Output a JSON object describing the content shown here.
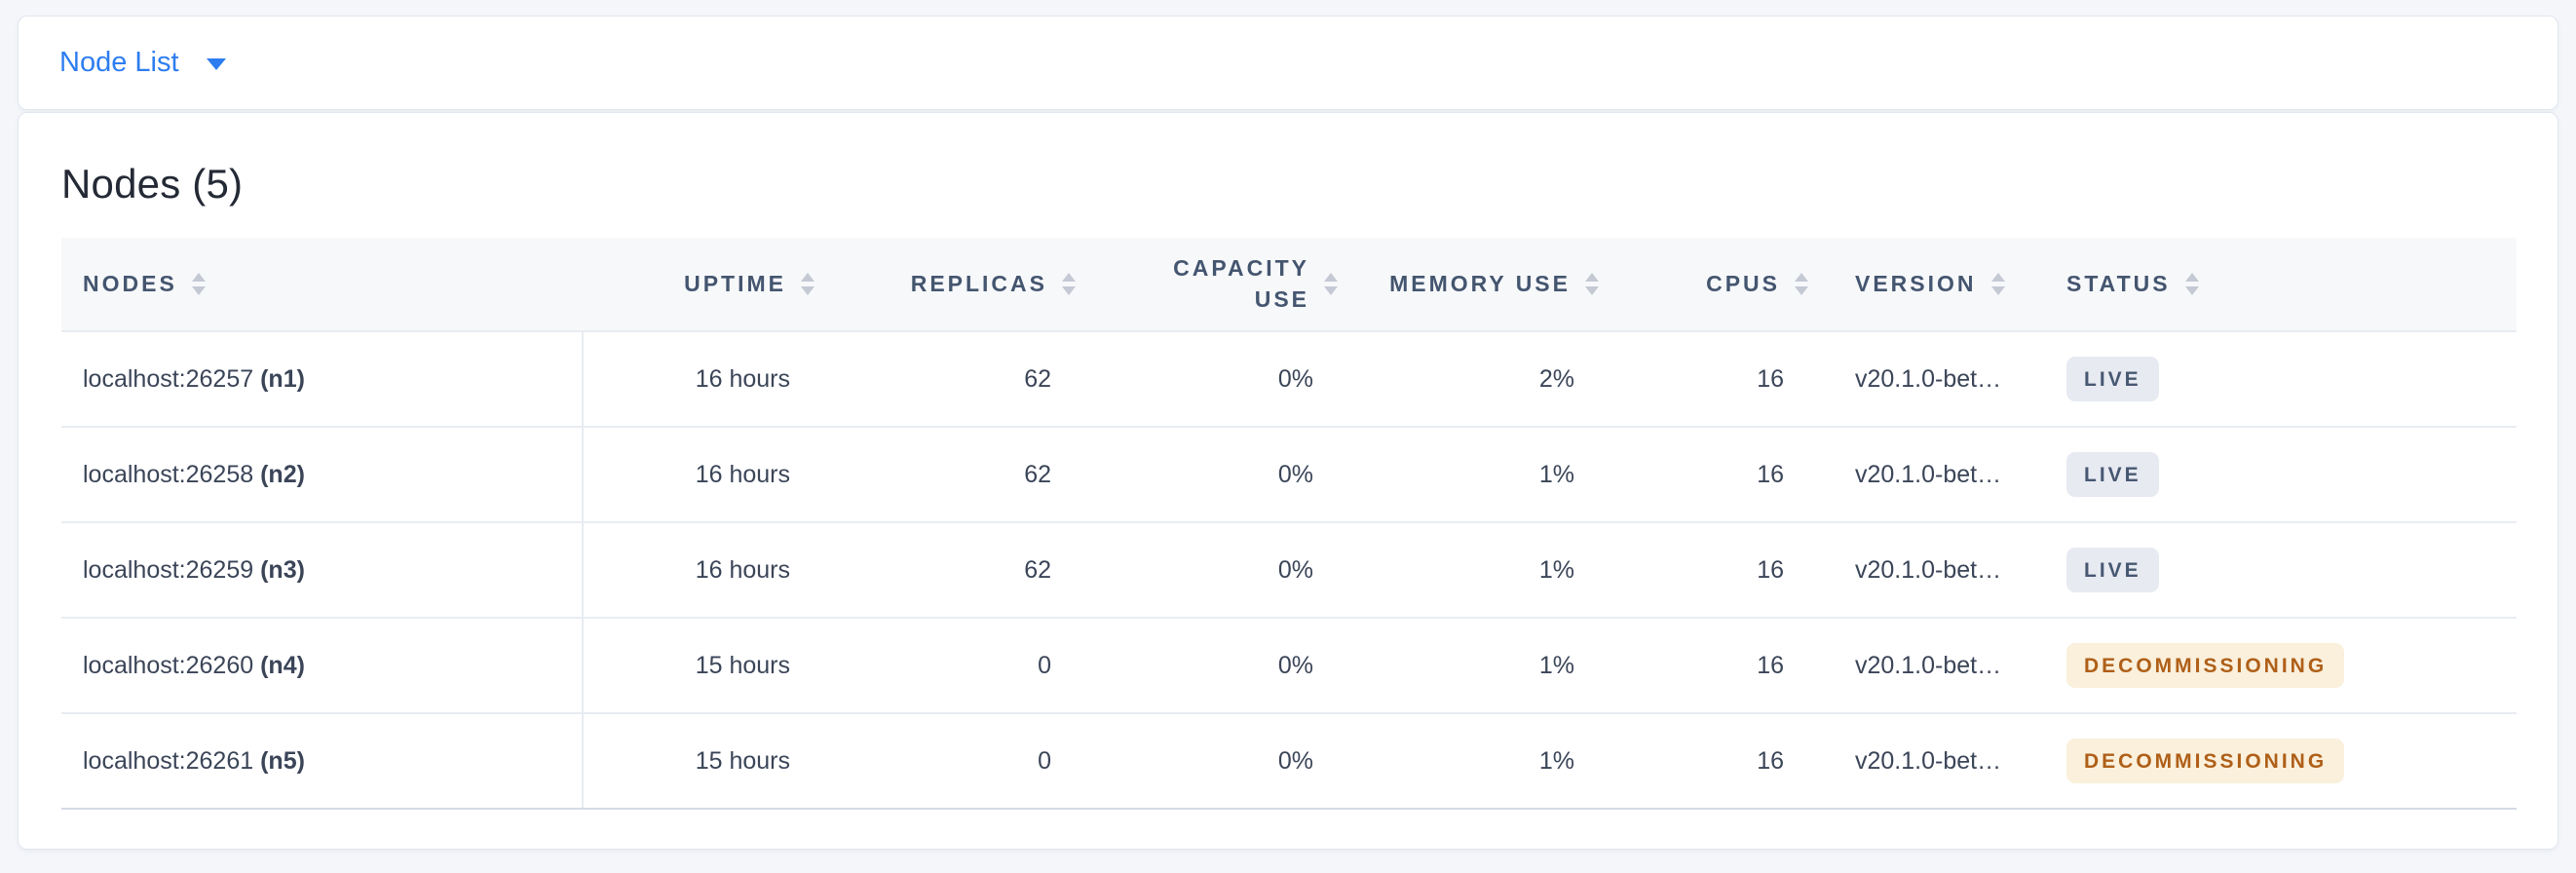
{
  "topbar": {
    "dropdown_label": "Node List"
  },
  "main": {
    "heading": "Nodes (5)",
    "table": {
      "columns": [
        {
          "label": "NODES",
          "align": "left"
        },
        {
          "label": "UPTIME",
          "align": "right"
        },
        {
          "label": "REPLICAS",
          "align": "right"
        },
        {
          "label": "CAPACITY USE",
          "align": "right"
        },
        {
          "label": "MEMORY USE",
          "align": "right"
        },
        {
          "label": "CPUS",
          "align": "right"
        },
        {
          "label": "VERSION",
          "align": "left"
        },
        {
          "label": "STATUS",
          "align": "left"
        }
      ],
      "rows": [
        {
          "node": "localhost:26257",
          "id": "(n1)",
          "uptime": "16 hours",
          "replicas": "62",
          "capacity_use": "0%",
          "memory_use": "2%",
          "cpus": "16",
          "version": "v20.1.0-bet…",
          "status": "LIVE",
          "status_kind": "live"
        },
        {
          "node": "localhost:26258",
          "id": "(n2)",
          "uptime": "16 hours",
          "replicas": "62",
          "capacity_use": "0%",
          "memory_use": "1%",
          "cpus": "16",
          "version": "v20.1.0-bet…",
          "status": "LIVE",
          "status_kind": "live"
        },
        {
          "node": "localhost:26259",
          "id": "(n3)",
          "uptime": "16 hours",
          "replicas": "62",
          "capacity_use": "0%",
          "memory_use": "1%",
          "cpus": "16",
          "version": "v20.1.0-bet…",
          "status": "LIVE",
          "status_kind": "live"
        },
        {
          "node": "localhost:26260",
          "id": "(n4)",
          "uptime": "15 hours",
          "replicas": "0",
          "capacity_use": "0%",
          "memory_use": "1%",
          "cpus": "16",
          "version": "v20.1.0-bet…",
          "status": "DECOMMISSIONING",
          "status_kind": "decommissioning"
        },
        {
          "node": "localhost:26261",
          "id": "(n5)",
          "uptime": "15 hours",
          "replicas": "0",
          "capacity_use": "0%",
          "memory_use": "1%",
          "cpus": "16",
          "version": "v20.1.0-bet…",
          "status": "DECOMMISSIONING",
          "status_kind": "decommissioning"
        }
      ]
    }
  },
  "icons": {
    "dropdown_caret": "caret-down-icon",
    "column_sort": "sort-arrows-icon"
  },
  "colors": {
    "page_background": "#F4F6FA",
    "card_background": "#FFFFFF",
    "card_border": "#E2E7EF",
    "link_blue": "#2D7DF0",
    "heading_text": "#242A35",
    "header_text": "#44556F",
    "body_text": "#3B4558",
    "header_band": "#F7F8FA",
    "row_border": "#E8ECF2",
    "sort_icon": "#C4C9D4",
    "badge_live_bg": "#E7EAF1",
    "badge_live_text": "#475872",
    "badge_decommissioning_bg": "#FAF0DC",
    "badge_decommissioning_text": "#AF5F18"
  }
}
